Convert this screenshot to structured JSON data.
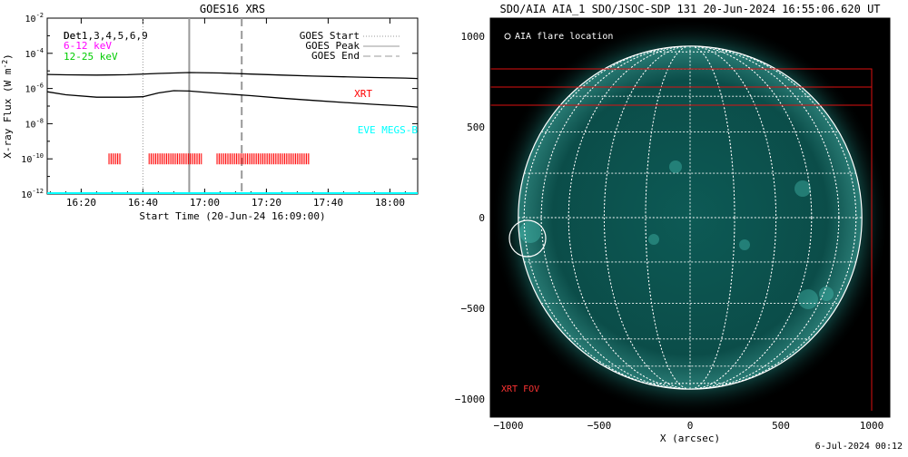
{
  "left_chart": {
    "title": "GOES16 XRS",
    "ylabel": "X-ray Flux (W m",
    "ylabel_sup": "-2",
    "ylabel_end": ")",
    "xlabel": "Start Time (20-Jun-24 16:09:00)",
    "detector_label": "Det",
    "detector_label_2": "Det1,3,4,5,6,9",
    "band_1": "6-12 keV",
    "band_2": "12-25 keV",
    "legend": {
      "start": "GOES Start",
      "peak": "GOES Peak",
      "end": "GOES End",
      "position": "top-right"
    },
    "xrt_label": "XRT",
    "eve_label": "EVE MEGS-B",
    "colors": {
      "band_1": "#ff00ff",
      "band_2": "#00cc00",
      "xrt": "#ff0000",
      "eve": "#00ffff"
    }
  },
  "right_chart": {
    "title": "SDO/AIA AIA_1 SDO/JSOC-SDP 131 20-Jun-2024 16:55:06.620 UT",
    "xlabel": "X (arcsec)",
    "legend_flare": "AIA flare location",
    "fov_label": "XRT FOV",
    "colors": {
      "disk": "#0b4d49",
      "grid": "#ffffff",
      "fov": "#dd1111"
    }
  },
  "timestamp": "6-Jul-2024 00:12",
  "chart_data": [
    {
      "type": "line",
      "title": "GOES16 XRS",
      "xlabel": "Start Time (20-Jun-24 16:09:00)",
      "ylabel": "X-ray Flux (W m^-2)",
      "xlim": [
        "16:09",
        "18:09"
      ],
      "ylim": [
        1e-12,
        0.01
      ],
      "yscale": "log",
      "x_ticks": [
        "16:20",
        "16:40",
        "17:00",
        "17:20",
        "17:40",
        "18:00"
      ],
      "y_ticks": [
        "10^-12",
        "10^-10",
        "10^-8",
        "10^-6",
        "10^-4",
        "10^-2"
      ],
      "series": [
        {
          "x": [
            "16:09",
            "16:15",
            "16:25",
            "16:35",
            "16:45",
            "16:55",
            "17:05",
            "17:15",
            "17:25",
            "17:35",
            "17:45",
            "17:55",
            "18:05",
            "18:09"
          ],
          "values": [
            6.3e-06,
            6e-06,
            5.8e-06,
            6.1e-06,
            7.2e-06,
            8.1e-06,
            7.6e-06,
            6.6e-06,
            5.8e-06,
            5.1e-06,
            4.6e-06,
            4.2e-06,
            3.9e-06,
            3.7e-06
          ]
        },
        {
          "x": [
            "16:09",
            "16:15",
            "16:25",
            "16:35",
            "16:40",
            "16:45",
            "16:50",
            "16:55",
            "17:05",
            "17:15",
            "17:25",
            "17:35",
            "17:45",
            "17:55",
            "18:05",
            "18:09"
          ],
          "values": [
            6.5e-07,
            4.4e-07,
            3.2e-07,
            3.2e-07,
            3.4e-07,
            5.6e-07,
            7.5e-07,
            7.2e-07,
            5.2e-07,
            3.9e-07,
            2.8e-07,
            2.1e-07,
            1.6e-07,
            1.25e-07,
            1e-07,
            8.8e-08
          ]
        }
      ],
      "markers": {
        "start": "16:40",
        "peak": "16:55",
        "end": "17:12"
      },
      "xrt_intervals": [
        [
          "16:29",
          "16:33"
        ],
        [
          "16:42",
          "16:59"
        ],
        [
          "17:04",
          "17:34"
        ]
      ],
      "xrt_level": 1e-10,
      "eve_level": 1e-12
    },
    {
      "type": "scatter",
      "title": "SDO/AIA AIA_1 SDO/JSOC-SDP 131 20-Jun-2024 16:55:06.620 UT",
      "xlabel": "X (arcsec)",
      "xlim": [
        -1100,
        1100
      ],
      "ylim": [
        -1100,
        1100
      ],
      "x_ticks": [
        -1000,
        -500,
        0,
        500,
        1000
      ],
      "y_ticks": [
        -1000,
        -500,
        0,
        500,
        1000
      ],
      "solar_radius": 946,
      "flare_location": {
        "x": -895,
        "y": -115
      },
      "xrt_fov": [
        {
          "x0": -1100,
          "x1": 1000,
          "y0": -1100,
          "y1": 820
        },
        {
          "x0": -1100,
          "x1": 1000,
          "y0": 620,
          "y1": 720
        }
      ]
    }
  ]
}
